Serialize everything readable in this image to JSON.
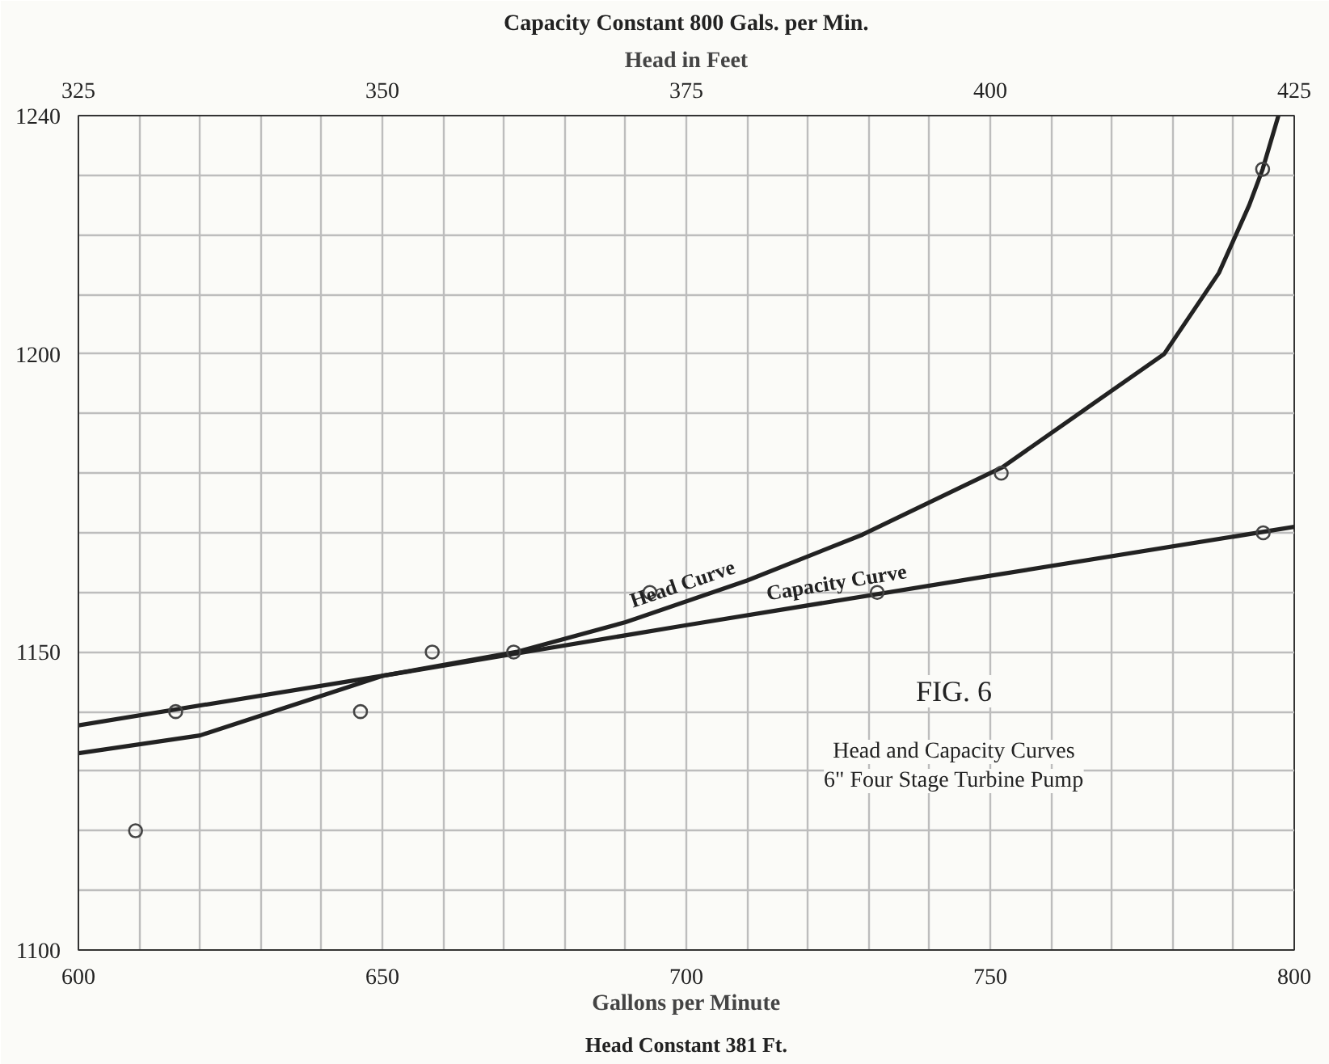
{
  "chart_data": {
    "type": "line",
    "title": "Capacity Constant 800 Gals. per Min.",
    "x2label": "Head in Feet",
    "xlabel": "Gallons per Minute",
    "annotations": [
      "Head Constant 381 Ft.",
      "FIG. 6",
      "Head and Capacity Curves",
      "6\" Four Stage Turbine Pump"
    ],
    "xlim": [
      600,
      800
    ],
    "ylim": [
      1100,
      1240
    ],
    "x2lim": [
      325,
      425
    ],
    "xticks": [
      600,
      {
        "value": 610,
        "label": null
      },
      {
        "value": 620,
        "label": null
      },
      {
        "value": 630,
        "label": null
      },
      {
        "value": 640,
        "label": null
      },
      650,
      {
        "value": 660,
        "label": null
      },
      {
        "value": 670,
        "label": null
      },
      {
        "value": 680,
        "label": null
      },
      {
        "value": 690,
        "label": null
      },
      700,
      {
        "value": 710,
        "label": null
      },
      {
        "value": 720,
        "label": null
      },
      {
        "value": 730,
        "label": null
      },
      {
        "value": 740,
        "label": null
      },
      750,
      {
        "value": 760,
        "label": null
      },
      {
        "value": 770,
        "label": null
      },
      {
        "value": 780,
        "label": null
      },
      {
        "value": 790,
        "label": null
      },
      800
    ],
    "yticks": [
      1100,
      {
        "value": 1110,
        "label": null
      },
      {
        "value": 1120,
        "label": null
      },
      {
        "value": 1130,
        "label": null
      },
      {
        "value": 1140,
        "label": null
      },
      1150,
      {
        "value": 1160,
        "label": null
      },
      {
        "value": 1170,
        "label": null
      },
      {
        "value": 1180,
        "label": null
      },
      {
        "value": 1190,
        "label": null
      },
      1200,
      {
        "value": 1210,
        "label": null
      },
      {
        "value": 1220,
        "label": null
      },
      {
        "value": 1230,
        "label": null
      },
      1240
    ],
    "x2ticks": [
      325,
      350,
      375,
      400,
      425
    ],
    "grid": true,
    "line_style": "solid",
    "series": [
      {
        "name": "Head Curve",
        "axis": "x2",
        "color": "#222222",
        "marker": "none",
        "x": [
          325,
          335,
          350,
          361,
          370,
          380,
          389.5,
          401,
          408,
          414.3,
          418.8,
          421.3,
          422.4,
          423.7
        ],
        "values": [
          1133,
          1136,
          1146,
          1150,
          1155,
          1162,
          1169.7,
          1181,
          1191,
          1200,
          1213.6,
          1225,
          1231,
          1240
        ]
      },
      {
        "name": "Capacity Curve",
        "color": "#222222",
        "marker": "none",
        "x": [
          600,
          650,
          700,
          750,
          800
        ],
        "values": [
          1137.7,
          1146,
          1154.5,
          1162.8,
          1171
        ]
      },
      {
        "type": "scatter",
        "axis": "x2",
        "color": "#444444",
        "marker": "circle",
        "x": [
          329.7,
          348.2,
          354.1,
          372,
          400.9,
          422.4
        ],
        "values": [
          1120,
          1140,
          1150,
          1160,
          1180,
          1231
        ]
      },
      {
        "type": "scatter",
        "color": "#444444",
        "marker": "circle",
        "x": [
          616,
          671.6,
          731.4,
          794.9
        ],
        "values": [
          1140,
          1150,
          1160,
          1170
        ]
      }
    ]
  }
}
